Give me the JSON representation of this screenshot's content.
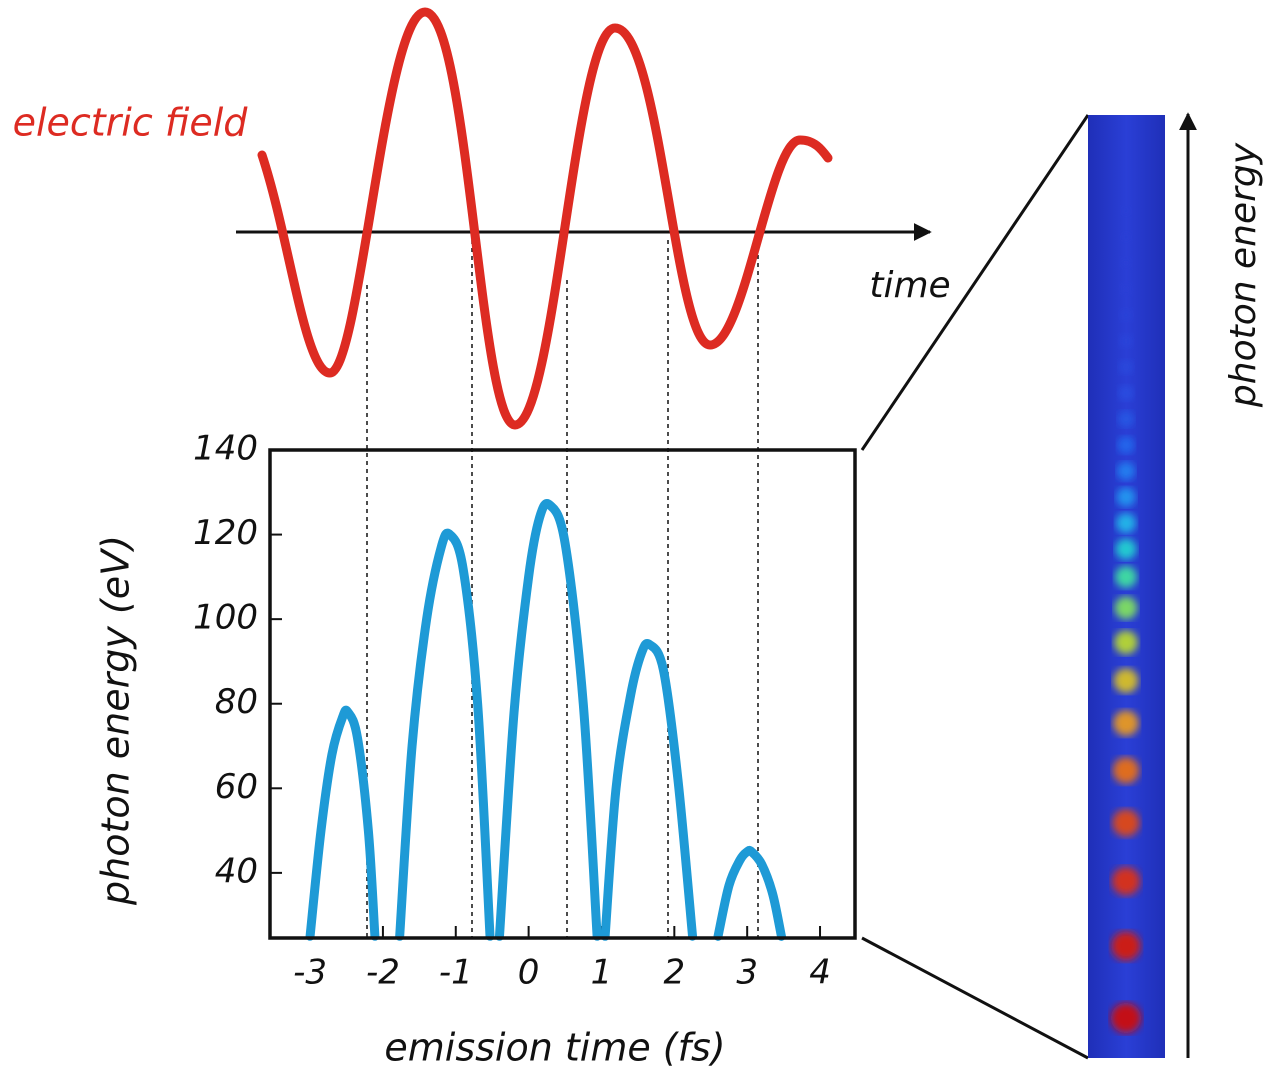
{
  "field_label": "electric field",
  "time_label": "time",
  "detector_label": "photon energy",
  "chart_data": {
    "type": "line",
    "xlabel": "emission time (fs)",
    "ylabel": "photon energy (eV)",
    "xlim": [
      -3.55,
      4.48
    ],
    "ylim": [
      24.6,
      140
    ],
    "xticks": [
      -3,
      -2,
      -1,
      0,
      1,
      2,
      3,
      4
    ],
    "yticks": [
      40,
      60,
      80,
      100,
      120,
      140
    ],
    "x": [
      -3.0,
      -2.85,
      -2.7,
      -2.55,
      -2.48,
      -2.35,
      -2.2,
      -2.11,
      -1.95,
      -1.77,
      -1.6,
      -1.4,
      -1.2,
      -1.08,
      -0.9,
      -0.7,
      -0.53,
      -0.47,
      -0.4,
      -0.2,
      0,
      0.15,
      0.29,
      0.5,
      0.75,
      0.94,
      1.0,
      1.05,
      1.2,
      1.4,
      1.55,
      1.66,
      1.85,
      2.05,
      2.25,
      2.4,
      2.6,
      2.75,
      2.9,
      3.0,
      3.06,
      3.2,
      3.35,
      3.47
    ],
    "series": [
      {
        "color": "#1e9ad6",
        "values": [
          25,
          50,
          68,
          77,
          78,
          72,
          50,
          25,
          null,
          25,
          70,
          100,
          117,
          120,
          112,
          80,
          25,
          null,
          25,
          78,
          110,
          124,
          127,
          118,
          80,
          25,
          null,
          25,
          60,
          82,
          92,
          94,
          88,
          62,
          25,
          null,
          25,
          37,
          43,
          45,
          45,
          42,
          35,
          25
        ]
      }
    ]
  }
}
